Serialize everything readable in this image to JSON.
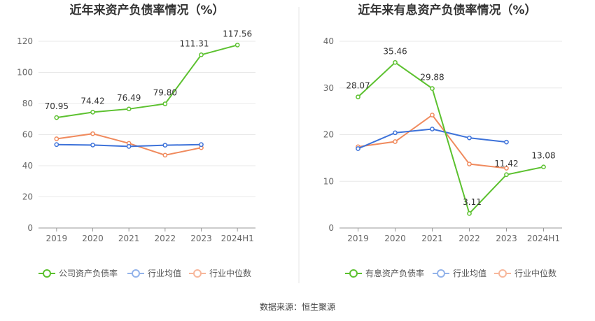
{
  "source": "数据来源：恒生聚源",
  "colors": {
    "primary": "#5cc12f",
    "avg": "#3d72d9",
    "median": "#f08a5d"
  },
  "chart_data": [
    {
      "type": "line",
      "title": "近年来资产负债率情况（%）",
      "categories": [
        "2019",
        "2020",
        "2021",
        "2022",
        "2023",
        "2024H1"
      ],
      "ylim": [
        0,
        120
      ],
      "yticks": [
        0,
        20,
        40,
        60,
        80,
        100,
        120
      ],
      "grid": true,
      "legend_position": "bottom",
      "series": [
        {
          "name": "公司资产负债率",
          "values": [
            70.95,
            74.42,
            76.49,
            79.8,
            111.31,
            117.56
          ],
          "labels": [
            "70.95",
            "74.42",
            "76.49",
            "79.80",
            "111.31",
            "117.56"
          ]
        },
        {
          "name": "行业均值",
          "values": [
            53.6,
            53.3,
            52.4,
            53.2,
            53.6,
            null
          ]
        },
        {
          "name": "行业中位数",
          "values": [
            57.3,
            60.6,
            54.4,
            46.8,
            51.6,
            null
          ]
        }
      ]
    },
    {
      "type": "line",
      "title": "近年来有息资产负债率情况（%）",
      "categories": [
        "2019",
        "2020",
        "2021",
        "2022",
        "2023",
        "2024H1"
      ],
      "ylim": [
        0,
        40
      ],
      "yticks": [
        0,
        10,
        20,
        30,
        40
      ],
      "grid": true,
      "legend_position": "bottom",
      "series": [
        {
          "name": "有息资产负债率",
          "values": [
            28.07,
            35.46,
            29.88,
            3.11,
            11.42,
            13.08
          ],
          "labels": [
            "28.07",
            "35.46",
            "29.88",
            "3.11",
            "11.42",
            "13.08"
          ]
        },
        {
          "name": "行业均值",
          "values": [
            17.0,
            20.4,
            21.2,
            19.3,
            18.4,
            null
          ]
        },
        {
          "name": "行业中位数",
          "values": [
            17.4,
            18.5,
            24.2,
            13.7,
            12.8,
            null
          ]
        }
      ]
    }
  ]
}
